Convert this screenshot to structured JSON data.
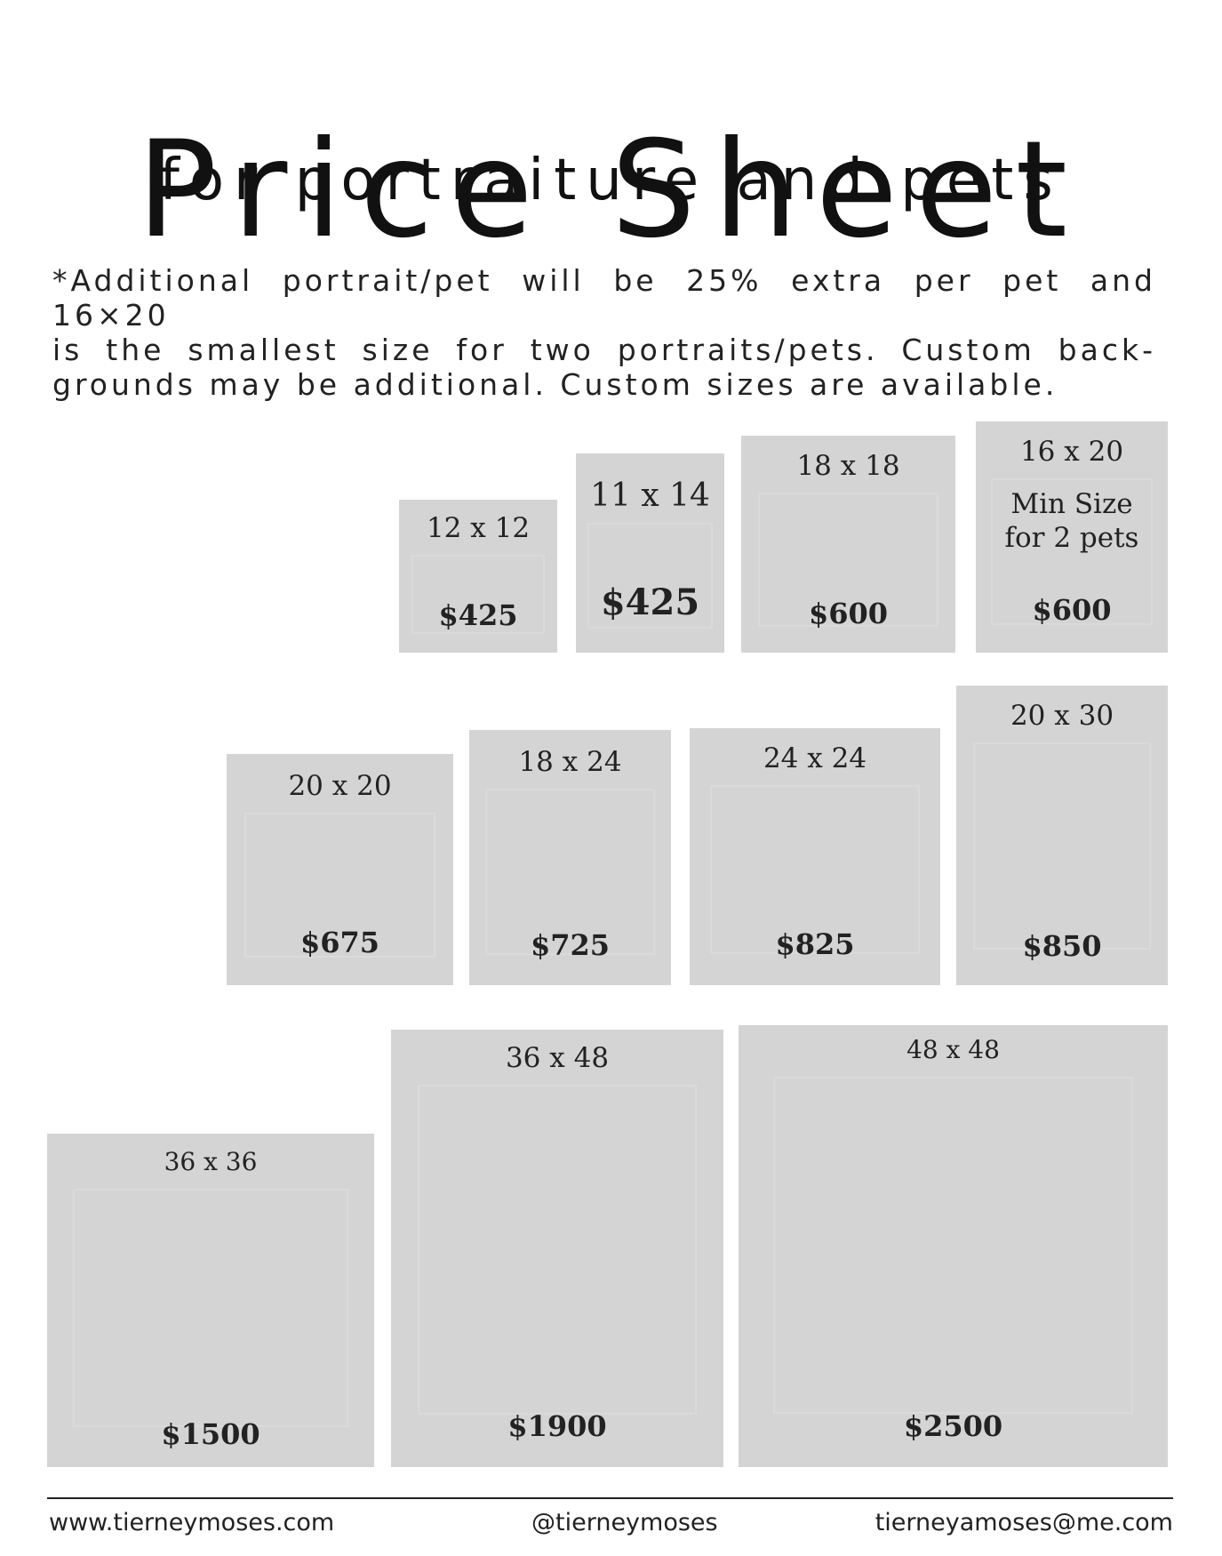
{
  "header": {
    "title": "Price Sheet",
    "subtitle": "for portraiture and pets"
  },
  "note": {
    "line1": "*Additional portrait/pet will be 25% extra per pet and 16×20",
    "line2": "is the smallest size for two portraits/pets. Custom back-",
    "line3": "grounds may be additional. Custom sizes are available."
  },
  "sizes": [
    {
      "size": "12 x 12",
      "price": "$425"
    },
    {
      "size": "11 x 14",
      "price": "$425"
    },
    {
      "size": "18 x 18",
      "price": "$600"
    },
    {
      "size": "16 x 20",
      "note": "Min Size for 2 pets",
      "price": "$600"
    },
    {
      "size": "20 x 20",
      "price": "$675"
    },
    {
      "size": "18 x 24",
      "price": "$725"
    },
    {
      "size": "24 x 24",
      "price": "$825"
    },
    {
      "size": "20 x 30",
      "price": "$850"
    },
    {
      "size": "36 x 36",
      "price": "$1500"
    },
    {
      "size": "36 x 48",
      "price": "$1900"
    },
    {
      "size": "48 x 48",
      "price": "$2500"
    }
  ],
  "footer": {
    "website": "www.tierneymoses.com",
    "social": "@tierneymoses",
    "email": "tierneyamoses@me.com"
  }
}
